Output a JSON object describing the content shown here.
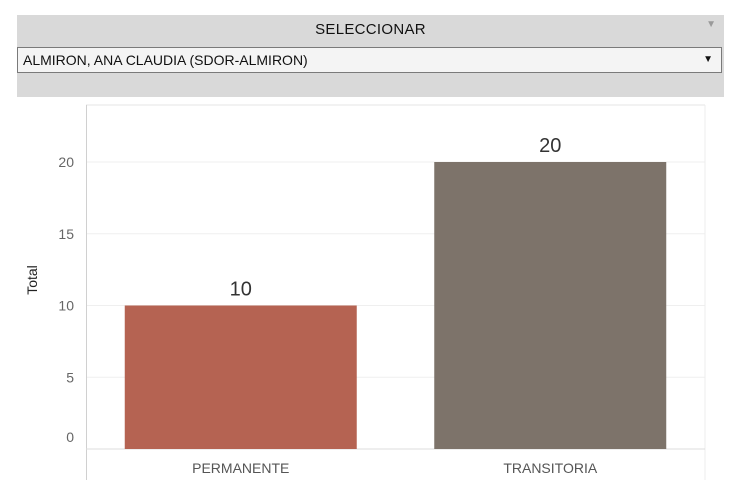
{
  "filter": {
    "title": "SELECCIONAR",
    "selected_value": "ALMIRON, ANA CLAUDIA (SDOR-ALMIRON)",
    "dropdown_icon": "triangle-down-icon",
    "menu_icon": "triangle-down-icon"
  },
  "chart_data": {
    "type": "bar",
    "title": "",
    "xlabel": "",
    "ylabel": "Total",
    "categories": [
      "PERMANENTE",
      "TRANSITORIA"
    ],
    "values": [
      10,
      20
    ],
    "data_labels": [
      "10",
      "20"
    ],
    "colors": [
      "#b56352",
      "#7d736a"
    ],
    "ylim": [
      0,
      24
    ],
    "yticks": [
      0,
      5,
      10,
      15,
      20
    ],
    "grid": true,
    "legend": "none"
  }
}
